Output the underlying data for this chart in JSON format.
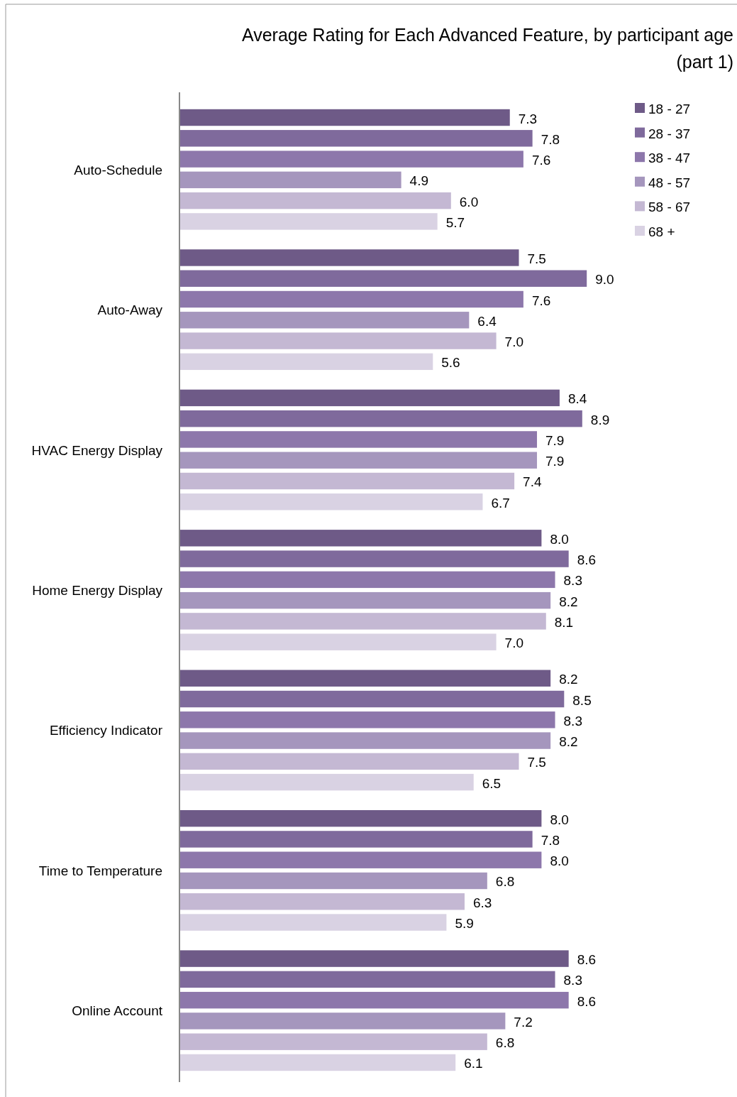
{
  "chart_data": {
    "type": "bar",
    "orientation": "horizontal",
    "title": "Average Rating for Each Advanced Feature, by participant age",
    "subtitle": "(part 1)",
    "categories": [
      "Auto-Schedule",
      "Auto-Away",
      "HVAC Energy Display",
      "Home Energy Display",
      "Efficiency Indicator",
      "Time to Temperature",
      "Online Account"
    ],
    "series": [
      {
        "name": "18 - 27",
        "color": "#6e5a87",
        "values": [
          7.3,
          7.5,
          8.4,
          8.0,
          8.2,
          8.0,
          8.6
        ],
        "value_labels": [
          "7.3",
          "7.5",
          "8.4",
          "8.0",
          "8.2",
          "8.0",
          "8.6"
        ]
      },
      {
        "name": "28 - 37",
        "color": "#7f6a9c",
        "values": [
          7.8,
          9.0,
          8.9,
          8.6,
          8.5,
          7.8,
          8.3
        ],
        "value_labels": [
          "7.8",
          "9.0",
          "8.9",
          "8.6",
          "8.5",
          "7.8",
          "8.3"
        ]
      },
      {
        "name": "38 - 47",
        "color": "#8d77ab",
        "values": [
          7.6,
          7.6,
          7.9,
          8.3,
          8.3,
          8.0,
          8.6
        ],
        "value_labels": [
          "7.6",
          "7.6",
          "7.9",
          "8.3",
          "8.3",
          "8.0",
          "8.6"
        ]
      },
      {
        "name": "48 - 57",
        "color": "#a596bd",
        "values": [
          4.9,
          6.4,
          7.9,
          8.2,
          8.2,
          6.8,
          7.2
        ],
        "value_labels": [
          "4.9",
          "6.4",
          "7.9",
          "8.2",
          "8.2",
          "6.8",
          "7.2"
        ]
      },
      {
        "name": "58 - 67",
        "color": "#c4b8d3",
        "values": [
          6.0,
          7.0,
          7.4,
          8.1,
          7.5,
          6.3,
          6.8
        ],
        "value_labels": [
          "6.0",
          "7.0",
          "7.4",
          "8.1",
          "7.5",
          "6.3",
          "6.8"
        ]
      },
      {
        "name": "68 +",
        "color": "#d9d2e3",
        "values": [
          5.7,
          5.6,
          6.7,
          7.0,
          6.5,
          5.9,
          6.1
        ],
        "value_labels": [
          "5.7",
          "5.6",
          "6.7",
          "7.0",
          "6.5",
          "5.9",
          "6.1"
        ]
      }
    ],
    "legend": "top right",
    "tick_labels": "y"
  }
}
